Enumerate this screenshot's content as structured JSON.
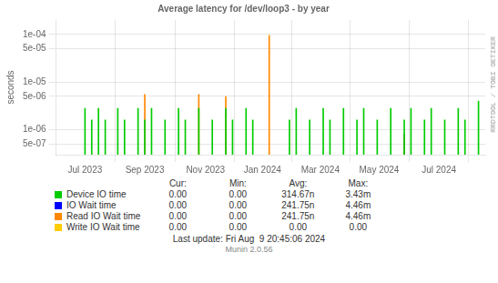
{
  "chart_data": {
    "type": "bar",
    "title": "Average latency for /dev/loop3 - by year",
    "ylabel": "seconds",
    "log": "y",
    "grid": true,
    "xlim": [
      1685577600,
      1724025600
    ],
    "xticks": [
      {
        "value": 1688169600,
        "label": "Jul 2023"
      },
      {
        "value": 1693526400,
        "label": "Sep 2023"
      },
      {
        "value": 1698969600,
        "label": "Nov 2023"
      },
      {
        "value": 1704067200,
        "label": "Jan 2024"
      },
      {
        "value": 1709251200,
        "label": "Mar 2024"
      },
      {
        "value": 1714521600,
        "label": "May 2024"
      },
      {
        "value": 1719878400,
        "label": "Jul 2024"
      }
    ],
    "ylim": [
      3e-07,
      0.0002
    ],
    "yticks": [
      {
        "value": 5e-07,
        "label": "5e-07"
      },
      {
        "value": 1e-06,
        "label": "1e-06"
      },
      {
        "value": 5e-06,
        "label": "5e-06"
      },
      {
        "value": 1e-05,
        "label": "1e-05"
      },
      {
        "value": 5e-05,
        "label": "5e-05"
      },
      {
        "value": 0.0001,
        "label": "1e-04"
      }
    ],
    "table_headers": [
      "Cur:",
      "Min:",
      "Avg:",
      "Max:"
    ],
    "series": [
      {
        "name": "Device IO time",
        "color": "#00cc00",
        "stats": [
          "0.00",
          "0.00",
          "314.67n",
          "3.43m"
        ],
        "x": [
          1688169600,
          1688774400,
          1689379200,
          1689984000,
          1691107200,
          1691712000,
          1692921600,
          1693526400,
          1694131200,
          1695340800,
          1696550400,
          1697155200,
          1698364800,
          1699574400,
          1700784000,
          1701388800,
          1702598400,
          1703203200,
          1706486400,
          1707091200,
          1708300800,
          1709510400,
          1710115200,
          1711324800,
          1712534400,
          1713139200,
          1714348800,
          1715558400,
          1716768000,
          1717372800,
          1718582400,
          1719187200,
          1720396800,
          1721606400,
          1722211200,
          1723420800
        ],
        "values": [
          2.8e-06,
          1.6e-06,
          2.8e-06,
          1.6e-06,
          2.8e-06,
          1.6e-06,
          2.8e-06,
          1.6e-06,
          2.8e-06,
          1.6e-06,
          2.8e-06,
          1.6e-06,
          2.8e-06,
          1.6e-06,
          2.8e-06,
          1.6e-06,
          2.8e-06,
          1.6e-06,
          1.6e-06,
          2.8e-06,
          1.6e-06,
          2.8e-06,
          1.6e-06,
          2.8e-06,
          1.6e-06,
          2.8e-06,
          1.6e-06,
          2.8e-06,
          1.6e-06,
          2.8e-06,
          1.6e-06,
          2.8e-06,
          1.6e-06,
          2.8e-06,
          1.6e-06,
          4e-06
        ]
      },
      {
        "name": "IO Wait time",
        "color": "#0000ff",
        "stats": [
          "0.00",
          "0.00",
          "241.75n",
          "4.46m"
        ],
        "x": [],
        "values": []
      },
      {
        "name": "Read IO Wait time",
        "color": "#ff8800",
        "stats": [
          "0.00",
          "0.00",
          "241.75n",
          "4.46m"
        ],
        "x": [
          1693526400,
          1698364800,
          1700784000,
          1704672000
        ],
        "values": [
          5.5e-06,
          5.5e-06,
          5e-06,
          9.5e-05
        ]
      },
      {
        "name": "Write IO Wait time",
        "color": "#ffcc00",
        "stats": [
          "0.00",
          "0.00",
          "0.00",
          "0.00"
        ],
        "x": [],
        "values": []
      },
      {
        "color": "#aa6600",
        "x": [
          1716768000
        ],
        "values": [
          8e-07
        ]
      }
    ],
    "watermark": "RRDTOOL / TOBI OETIKER",
    "footer": [
      "Last update: Fri Aug  9 20:45:06 2024",
      "Munin 2.0.56"
    ]
  }
}
